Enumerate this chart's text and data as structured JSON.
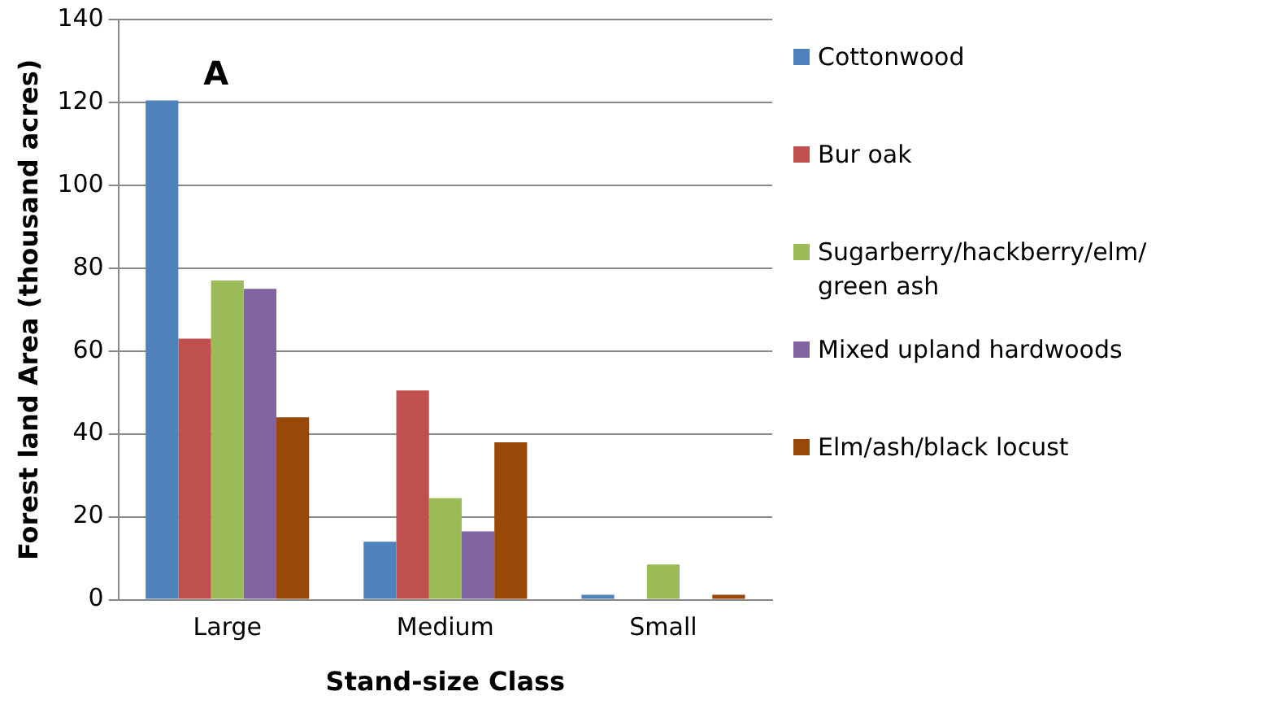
{
  "chart_data": {
    "type": "bar",
    "xlabel": "Stand-size Class",
    "ylabel": "Forest land Area (thousand acres)",
    "categories": [
      "Large",
      "Medium",
      "Small"
    ],
    "series": [
      {
        "name": "Cottonwood",
        "color": "#4f81bd",
        "values": [
          120.5,
          14,
          1.2
        ]
      },
      {
        "name": "Bur oak",
        "color": "#c0504d",
        "values": [
          63,
          50.5,
          0
        ]
      },
      {
        "name": "Sugarberry/hackberry/elm/green ash",
        "color": "#9bbb59",
        "values": [
          77,
          24.5,
          8.5
        ]
      },
      {
        "name": "Mixed upland hardwoods",
        "color": "#8064a2",
        "values": [
          75,
          16.5,
          0
        ]
      },
      {
        "name": "Elm/ash/black locust",
        "color": "#984807",
        "values": [
          44,
          38,
          1.2
        ]
      }
    ],
    "ylim": [
      0,
      140
    ],
    "yticks": [
      0,
      20,
      40,
      60,
      80,
      100,
      120,
      140
    ],
    "grid": "y",
    "legend": "right",
    "annotations": [
      "A"
    ]
  }
}
